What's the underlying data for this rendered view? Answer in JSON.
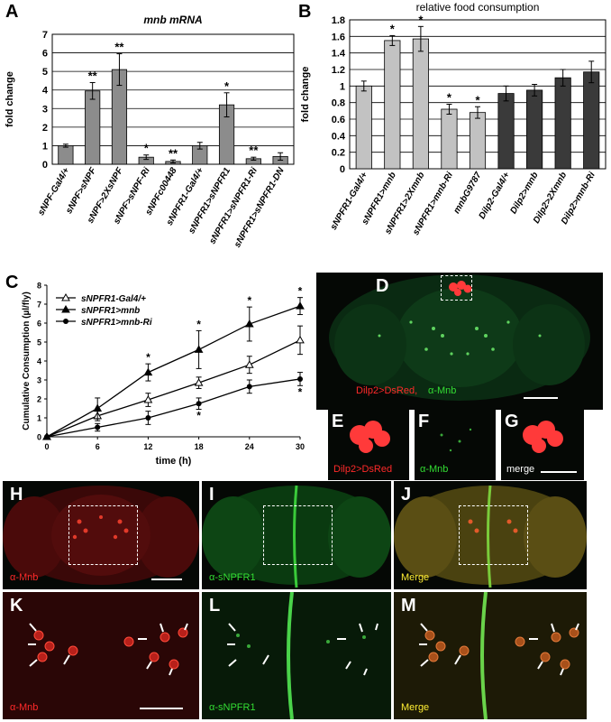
{
  "panels": {
    "A": "A",
    "B": "B",
    "C": "C",
    "D": "D",
    "E": "E",
    "F": "F",
    "G": "G",
    "H": "H",
    "I": "I",
    "J": "J",
    "K": "K",
    "L": "L",
    "M": "M"
  },
  "chart_data": [
    {
      "id": "A",
      "type": "bar",
      "title": "mnb mRNA",
      "ylabel": "fold change",
      "xlabel": "",
      "ylim": [
        0,
        7
      ],
      "yticks": [
        0,
        1,
        2,
        3,
        4,
        5,
        6,
        7
      ],
      "grid": true,
      "categories": [
        "sNPF-Gal4/+",
        "sNPF>sNPF",
        "sNPF>2XsNPF",
        "sNPF>sNPF-Ri",
        "sNPFc00448",
        "sNPFR1-Gal4/+",
        "sNPFR1>sNPFR1",
        "sNPFR1>sNPFR1-Ri",
        "sNPFR1>sNPFR1-DN"
      ],
      "values": [
        1.0,
        3.95,
        5.1,
        0.38,
        0.15,
        1.0,
        3.2,
        0.3,
        0.42
      ],
      "errors": [
        0.08,
        0.45,
        0.85,
        0.12,
        0.08,
        0.18,
        0.65,
        0.08,
        0.2
      ],
      "significance": [
        "",
        "**",
        "**",
        "*",
        "**",
        "",
        "*",
        "**",
        ""
      ],
      "bar_color": "#8c8c8c"
    },
    {
      "id": "B",
      "type": "bar",
      "title": "relative  food consumption",
      "ylabel": "fold change",
      "xlabel": "",
      "ylim": [
        0,
        1.8
      ],
      "yticks": [
        0,
        0.2,
        0.4,
        0.6,
        0.8,
        1,
        1.2,
        1.4,
        1.6,
        1.8
      ],
      "grid": true,
      "categories": [
        "sNPFR1-Gal4/+",
        "sNPFR1>mnb",
        "sNPFR1>2Xmnb",
        "sNPFR1>mnb-Ri",
        "mnbG9787",
        "Dilp2-Gal4/+",
        "Dilp2>mnb",
        "Dilp2>2Xmnb",
        "Dilp2>mnb-Ri"
      ],
      "values": [
        1.0,
        1.55,
        1.57,
        0.72,
        0.68,
        0.91,
        0.95,
        1.1,
        1.17
      ],
      "errors": [
        0.06,
        0.06,
        0.15,
        0.06,
        0.07,
        0.09,
        0.07,
        0.1,
        0.13
      ],
      "significance": [
        "",
        "*",
        "*",
        "*",
        "*",
        "",
        "",
        "",
        ""
      ],
      "bar_colors": [
        "#c2c2c2",
        "#c2c2c2",
        "#c2c2c2",
        "#c2c2c2",
        "#c2c2c2",
        "#3a3a3a",
        "#3a3a3a",
        "#3a3a3a",
        "#3a3a3a"
      ]
    },
    {
      "id": "C",
      "type": "line",
      "title": "",
      "xlabel": "time (h)",
      "ylabel": "Cumulative Consumption (µl/fly)",
      "xlim": [
        0,
        30
      ],
      "ylim": [
        0,
        8
      ],
      "xticks": [
        0,
        6,
        12,
        18,
        24,
        30
      ],
      "yticks": [
        0,
        1,
        2,
        3,
        4,
        5,
        6,
        7,
        8
      ],
      "legend": "top-left",
      "x": [
        0,
        6,
        12,
        18,
        24,
        30
      ],
      "series": [
        {
          "name": "sNPFR1-Gal4/+",
          "marker": "open-triangle",
          "values": [
            0,
            1.1,
            1.95,
            2.85,
            3.8,
            5.1
          ],
          "errors": [
            0,
            0.25,
            0.35,
            0.3,
            0.45,
            0.75
          ],
          "stars": []
        },
        {
          "name": "sNPFR1>mnb",
          "marker": "filled-triangle",
          "values": [
            0,
            1.5,
            3.4,
            4.6,
            5.95,
            6.9
          ],
          "errors": [
            0,
            0.55,
            0.45,
            1.0,
            0.9,
            0.45
          ],
          "stars": [
            12,
            18,
            24,
            30
          ]
        },
        {
          "name": "sNPFR1>mnb-Ri",
          "marker": "filled-circle",
          "values": [
            0,
            0.5,
            1.0,
            1.75,
            2.65,
            3.05
          ],
          "errors": [
            0,
            0.2,
            0.35,
            0.3,
            0.35,
            0.35
          ],
          "stars": [
            18,
            30
          ]
        }
      ]
    }
  ],
  "micrographs": {
    "D": {
      "label_red": "Dilp2>DsRed,",
      "label_green": "α-Mnb"
    },
    "E": {
      "label": "Dilp2>DsRed"
    },
    "F": {
      "label": "α-Mnb"
    },
    "G": {
      "label": "merge"
    },
    "H": {
      "label": "α-Mnb"
    },
    "I": {
      "label": "α-sNPFR1"
    },
    "J": {
      "label": "Merge"
    },
    "K": {
      "label": "α-Mnb"
    },
    "L": {
      "label": "α-sNPFR1"
    },
    "M": {
      "label": "Merge"
    }
  },
  "colors": {
    "red_label": "#ff2a2a",
    "green_label": "#33dd33",
    "yellow_label": "#ffee33"
  }
}
